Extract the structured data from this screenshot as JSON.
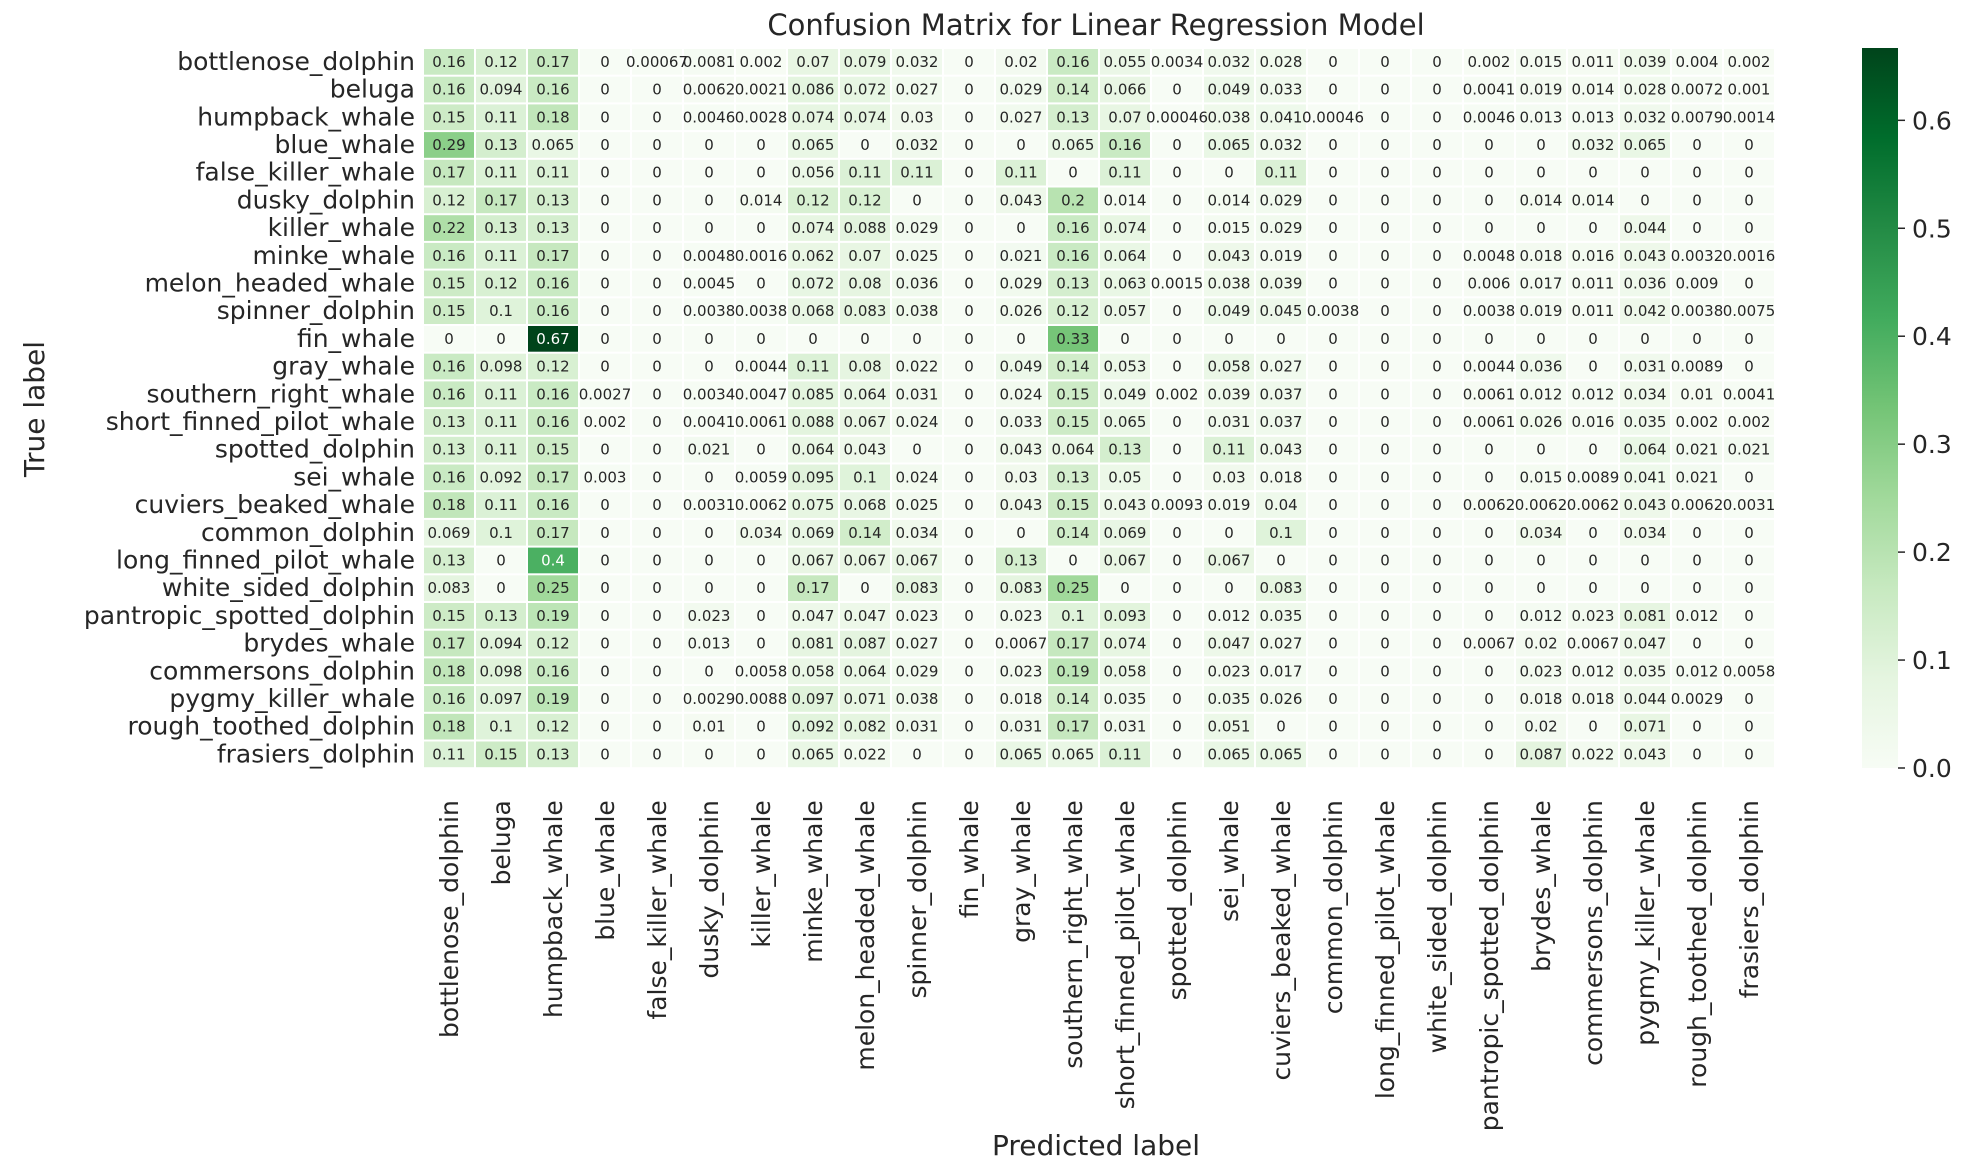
{
  "chart_data": {
    "type": "heatmap",
    "title": "Confusion Matrix for Linear Regression Model",
    "xlabel": "Predicted label",
    "ylabel": "True label",
    "colormap": "Greens",
    "vmin": 0,
    "vmax": 0.667,
    "colorbar_ticks": [
      "0.0",
      "0.1",
      "0.2",
      "0.3",
      "0.4",
      "0.5",
      "0.6"
    ],
    "row_labels": [
      "bottlenose_dolphin",
      "beluga",
      "humpback_whale",
      "blue_whale",
      "false_killer_whale",
      "dusky_dolphin",
      "killer_whale",
      "minke_whale",
      "melon_headed_whale",
      "spinner_dolphin",
      "fin_whale",
      "gray_whale",
      "southern_right_whale",
      "short_finned_pilot_whale",
      "spotted_dolphin",
      "sei_whale",
      "cuviers_beaked_whale",
      "common_dolphin",
      "long_finned_pilot_whale",
      "white_sided_dolphin",
      "pantropic_spotted_dolphin",
      "brydes_whale",
      "commersons_dolphin",
      "pygmy_killer_whale",
      "rough_toothed_dolphin",
      "frasiers_dolphin"
    ],
    "col_labels": [
      "bottlenose_dolphin",
      "beluga",
      "humpback_whale",
      "blue_whale",
      "false_killer_whale",
      "dusky_dolphin",
      "killer_whale",
      "minke_whale",
      "melon_headed_whale",
      "spinner_dolphin",
      "fin_whale",
      "gray_whale",
      "southern_right_whale",
      "short_finned_pilot_whale",
      "spotted_dolphin",
      "sei_whale",
      "cuviers_beaked_whale",
      "common_dolphin",
      "long_finned_pilot_whale",
      "white_sided_dolphin",
      "pantropic_spotted_dolphin",
      "brydes_whale",
      "commersons_dolphin",
      "pygmy_killer_whale",
      "rough_toothed_dolphin",
      "frasiers_dolphin"
    ],
    "values": [
      [
        "0.16",
        "0.12",
        "0.17",
        "0",
        "0.00067",
        "0.0081",
        "0.002",
        "0.07",
        "0.079",
        "0.032",
        "0",
        "0.02",
        "0.16",
        "0.055",
        "0.0034",
        "0.032",
        "0.028",
        "0",
        "0",
        "0",
        "0.002",
        "0.015",
        "0.011",
        "0.039",
        "0.004",
        "0.002"
      ],
      [
        "0.16",
        "0.094",
        "0.16",
        "0",
        "0",
        "0.0062",
        "0.0021",
        "0.086",
        "0.072",
        "0.027",
        "0",
        "0.029",
        "0.14",
        "0.066",
        "0",
        "0.049",
        "0.033",
        "0",
        "0",
        "0",
        "0.0041",
        "0.019",
        "0.014",
        "0.028",
        "0.0072",
        "0.001"
      ],
      [
        "0.15",
        "0.11",
        "0.18",
        "0",
        "0",
        "0.0046",
        "0.0028",
        "0.074",
        "0.074",
        "0.03",
        "0",
        "0.027",
        "0.13",
        "0.07",
        "0.00046",
        "0.038",
        "0.041",
        "0.00046",
        "0",
        "0",
        "0.0046",
        "0.013",
        "0.013",
        "0.032",
        "0.0079",
        "0.0014"
      ],
      [
        "0.29",
        "0.13",
        "0.065",
        "0",
        "0",
        "0",
        "0",
        "0.065",
        "0",
        "0.032",
        "0",
        "0",
        "0.065",
        "0.16",
        "0",
        "0.065",
        "0.032",
        "0",
        "0",
        "0",
        "0",
        "0",
        "0.032",
        "0.065",
        "0",
        "0"
      ],
      [
        "0.17",
        "0.11",
        "0.11",
        "0",
        "0",
        "0",
        "0",
        "0.056",
        "0.11",
        "0.11",
        "0",
        "0.11",
        "0",
        "0.11",
        "0",
        "0",
        "0.11",
        "0",
        "0",
        "0",
        "0",
        "0",
        "0",
        "0",
        "0",
        "0"
      ],
      [
        "0.12",
        "0.17",
        "0.13",
        "0",
        "0",
        "0",
        "0.014",
        "0.12",
        "0.12",
        "0",
        "0",
        "0.043",
        "0.2",
        "0.014",
        "0",
        "0.014",
        "0.029",
        "0",
        "0",
        "0",
        "0",
        "0.014",
        "0.014",
        "0",
        "0",
        "0"
      ],
      [
        "0.22",
        "0.13",
        "0.13",
        "0",
        "0",
        "0",
        "0",
        "0.074",
        "0.088",
        "0.029",
        "0",
        "0",
        "0.16",
        "0.074",
        "0",
        "0.015",
        "0.029",
        "0",
        "0",
        "0",
        "0",
        "0",
        "0",
        "0.044",
        "0",
        "0"
      ],
      [
        "0.16",
        "0.11",
        "0.17",
        "0",
        "0",
        "0.0048",
        "0.0016",
        "0.062",
        "0.07",
        "0.025",
        "0",
        "0.021",
        "0.16",
        "0.064",
        "0",
        "0.043",
        "0.019",
        "0",
        "0",
        "0",
        "0.0048",
        "0.018",
        "0.016",
        "0.043",
        "0.0032",
        "0.0016"
      ],
      [
        "0.15",
        "0.12",
        "0.16",
        "0",
        "0",
        "0.0045",
        "0",
        "0.072",
        "0.08",
        "0.036",
        "0",
        "0.029",
        "0.13",
        "0.063",
        "0.0015",
        "0.038",
        "0.039",
        "0",
        "0",
        "0",
        "0.006",
        "0.017",
        "0.011",
        "0.036",
        "0.009",
        "0"
      ],
      [
        "0.15",
        "0.1",
        "0.16",
        "0",
        "0",
        "0.0038",
        "0.0038",
        "0.068",
        "0.083",
        "0.038",
        "0",
        "0.026",
        "0.12",
        "0.057",
        "0",
        "0.049",
        "0.045",
        "0.0038",
        "0",
        "0",
        "0.0038",
        "0.019",
        "0.011",
        "0.042",
        "0.0038",
        "0.0075"
      ],
      [
        "0",
        "0",
        "0.67",
        "0",
        "0",
        "0",
        "0",
        "0",
        "0",
        "0",
        "0",
        "0",
        "0.33",
        "0",
        "0",
        "0",
        "0",
        "0",
        "0",
        "0",
        "0",
        "0",
        "0",
        "0",
        "0",
        "0"
      ],
      [
        "0.16",
        "0.098",
        "0.12",
        "0",
        "0",
        "0",
        "0.0044",
        "0.11",
        "0.08",
        "0.022",
        "0",
        "0.049",
        "0.14",
        "0.053",
        "0",
        "0.058",
        "0.027",
        "0",
        "0",
        "0",
        "0.0044",
        "0.036",
        "0",
        "0.031",
        "0.0089",
        "0"
      ],
      [
        "0.16",
        "0.11",
        "0.16",
        "0.0027",
        "0",
        "0.0034",
        "0.0047",
        "0.085",
        "0.064",
        "0.031",
        "0",
        "0.024",
        "0.15",
        "0.049",
        "0.002",
        "0.039",
        "0.037",
        "0",
        "0",
        "0",
        "0.0061",
        "0.012",
        "0.012",
        "0.034",
        "0.01",
        "0.0041"
      ],
      [
        "0.13",
        "0.11",
        "0.16",
        "0.002",
        "0",
        "0.0041",
        "0.0061",
        "0.088",
        "0.067",
        "0.024",
        "0",
        "0.033",
        "0.15",
        "0.065",
        "0",
        "0.031",
        "0.037",
        "0",
        "0",
        "0",
        "0.0061",
        "0.026",
        "0.016",
        "0.035",
        "0.002",
        "0.002"
      ],
      [
        "0.13",
        "0.11",
        "0.15",
        "0",
        "0",
        "0.021",
        "0",
        "0.064",
        "0.043",
        "0",
        "0",
        "0.043",
        "0.064",
        "0.13",
        "0",
        "0.11",
        "0.043",
        "0",
        "0",
        "0",
        "0",
        "0",
        "0",
        "0.064",
        "0.021",
        "0.021"
      ],
      [
        "0.16",
        "0.092",
        "0.17",
        "0.003",
        "0",
        "0",
        "0.0059",
        "0.095",
        "0.1",
        "0.024",
        "0",
        "0.03",
        "0.13",
        "0.05",
        "0",
        "0.03",
        "0.018",
        "0",
        "0",
        "0",
        "0",
        "0.015",
        "0.0089",
        "0.041",
        "0.021",
        "0"
      ],
      [
        "0.18",
        "0.11",
        "0.16",
        "0",
        "0",
        "0.0031",
        "0.0062",
        "0.075",
        "0.068",
        "0.025",
        "0",
        "0.043",
        "0.15",
        "0.043",
        "0.0093",
        "0.019",
        "0.04",
        "0",
        "0",
        "0",
        "0.0062",
        "0.0062",
        "0.0062",
        "0.043",
        "0.0062",
        "0.0031"
      ],
      [
        "0.069",
        "0.1",
        "0.17",
        "0",
        "0",
        "0",
        "0.034",
        "0.069",
        "0.14",
        "0.034",
        "0",
        "0",
        "0.14",
        "0.069",
        "0",
        "0",
        "0.1",
        "0",
        "0",
        "0",
        "0",
        "0.034",
        "0",
        "0.034",
        "0",
        "0"
      ],
      [
        "0.13",
        "0",
        "0.4",
        "0",
        "0",
        "0",
        "0",
        "0.067",
        "0.067",
        "0.067",
        "0",
        "0.13",
        "0",
        "0.067",
        "0",
        "0.067",
        "0",
        "0",
        "0",
        "0",
        "0",
        "0",
        "0",
        "0",
        "0",
        "0"
      ],
      [
        "0.083",
        "0",
        "0.25",
        "0",
        "0",
        "0",
        "0",
        "0.17",
        "0",
        "0.083",
        "0",
        "0.083",
        "0.25",
        "0",
        "0",
        "0",
        "0.083",
        "0",
        "0",
        "0",
        "0",
        "0",
        "0",
        "0",
        "0",
        "0"
      ],
      [
        "0.15",
        "0.13",
        "0.19",
        "0",
        "0",
        "0.023",
        "0",
        "0.047",
        "0.047",
        "0.023",
        "0",
        "0.023",
        "0.1",
        "0.093",
        "0",
        "0.012",
        "0.035",
        "0",
        "0",
        "0",
        "0",
        "0.012",
        "0.023",
        "0.081",
        "0.012",
        "0"
      ],
      [
        "0.17",
        "0.094",
        "0.12",
        "0",
        "0",
        "0.013",
        "0",
        "0.081",
        "0.087",
        "0.027",
        "0",
        "0.0067",
        "0.17",
        "0.074",
        "0",
        "0.047",
        "0.027",
        "0",
        "0",
        "0",
        "0.0067",
        "0.02",
        "0.0067",
        "0.047",
        "0",
        "0"
      ],
      [
        "0.18",
        "0.098",
        "0.16",
        "0",
        "0",
        "0",
        "0.0058",
        "0.058",
        "0.064",
        "0.029",
        "0",
        "0.023",
        "0.19",
        "0.058",
        "0",
        "0.023",
        "0.017",
        "0",
        "0",
        "0",
        "0",
        "0.023",
        "0.012",
        "0.035",
        "0.012",
        "0.0058"
      ],
      [
        "0.16",
        "0.097",
        "0.19",
        "0",
        "0",
        "0.0029",
        "0.0088",
        "0.097",
        "0.071",
        "0.038",
        "0",
        "0.018",
        "0.14",
        "0.035",
        "0",
        "0.035",
        "0.026",
        "0",
        "0",
        "0",
        "0",
        "0.018",
        "0.018",
        "0.044",
        "0.0029",
        "0"
      ],
      [
        "0.18",
        "0.1",
        "0.12",
        "0",
        "0",
        "0.01",
        "0",
        "0.092",
        "0.082",
        "0.031",
        "0",
        "0.031",
        "0.17",
        "0.031",
        "0",
        "0.051",
        "0",
        "0",
        "0",
        "0",
        "0",
        "0.02",
        "0",
        "0.071",
        "0",
        "0"
      ],
      [
        "0.11",
        "0.15",
        "0.13",
        "0",
        "0",
        "0",
        "0",
        "0.065",
        "0.022",
        "0",
        "0",
        "0.065",
        "0.065",
        "0.11",
        "0",
        "0.065",
        "0.065",
        "0",
        "0",
        "0",
        "0",
        "0.087",
        "0.022",
        "0.043",
        "0",
        "0"
      ]
    ]
  }
}
